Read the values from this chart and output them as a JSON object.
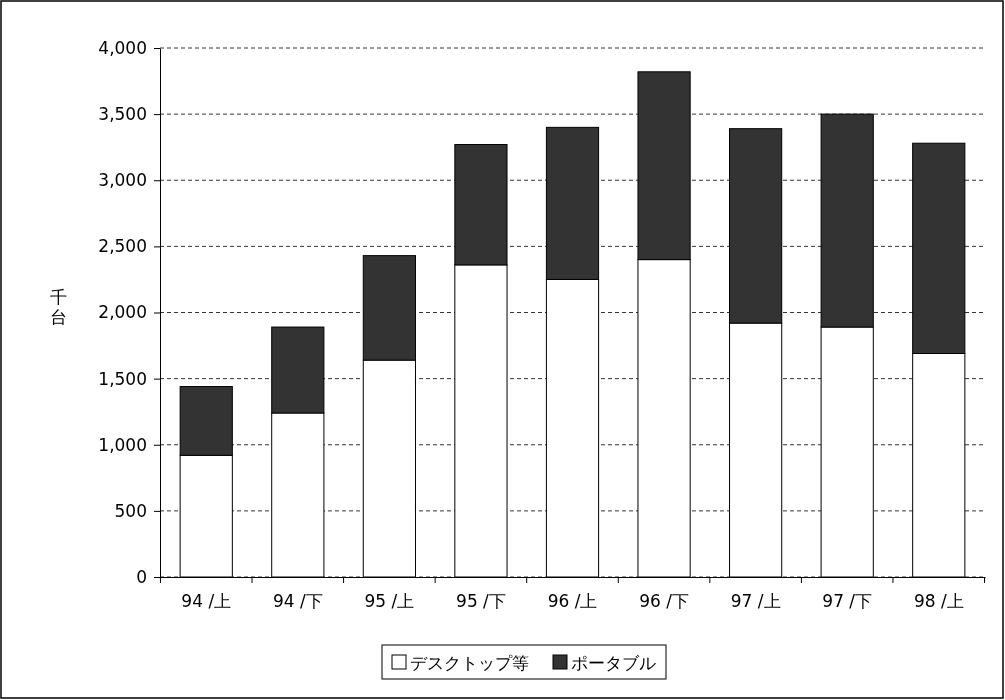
{
  "chart_data": {
    "type": "bar",
    "stacked": true,
    "ylabel": "千台",
    "categories": [
      "94 /上",
      "94 /下",
      "95 /上",
      "95 /下",
      "96 /上",
      "96 /下",
      "97 /上",
      "97 /下",
      "98 /上"
    ],
    "series": [
      {
        "name": "デスクトップ等",
        "color": "#ffffff",
        "values": [
          920,
          1240,
          1640,
          2360,
          2250,
          2400,
          1920,
          1890,
          1690
        ]
      },
      {
        "name": "ポータブル",
        "color": "#333333",
        "values": [
          520,
          650,
          790,
          910,
          1150,
          1420,
          1470,
          1610,
          1590
        ]
      }
    ],
    "ylim": [
      0,
      4000
    ],
    "yticks": [
      {
        "value": 0,
        "label": "0"
      },
      {
        "value": 500,
        "label": "500"
      },
      {
        "value": 1000,
        "label": "1,000"
      },
      {
        "value": 1500,
        "label": "1,500"
      },
      {
        "value": 2000,
        "label": "2,000"
      },
      {
        "value": 2500,
        "label": "2,500"
      },
      {
        "value": 3000,
        "label": "3,000"
      },
      {
        "value": 3500,
        "label": "3,500"
      },
      {
        "value": 4000,
        "label": "4,000"
      }
    ],
    "grid": "y",
    "legend": "bottom"
  }
}
